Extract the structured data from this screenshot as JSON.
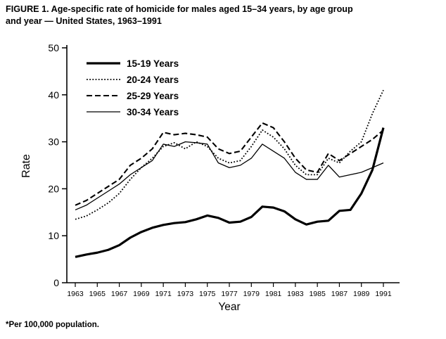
{
  "figure": {
    "title_lines": [
      "FIGURE 1. Age-specific rate of homicide for males aged 15–34 years, by age group",
      "and year — United States, 1963–1991"
    ],
    "footnote": "*Per 100,000 population."
  },
  "chart_data": {
    "type": "line",
    "title": "Age-specific rate of homicide for males aged 15–34 years, by age group and year — United States, 1963–1991",
    "xlabel": "Year",
    "ylabel": "Rate",
    "ylim": [
      0,
      50
    ],
    "yticks": [
      0,
      10,
      20,
      30,
      40,
      50
    ],
    "x": [
      1963,
      1964,
      1965,
      1966,
      1967,
      1968,
      1969,
      1970,
      1971,
      1972,
      1973,
      1974,
      1975,
      1976,
      1977,
      1978,
      1979,
      1980,
      1981,
      1982,
      1983,
      1984,
      1985,
      1986,
      1987,
      1988,
      1989,
      1990,
      1991
    ],
    "xtick_labels": [
      "1963",
      "1965",
      "1967",
      "1969",
      "1971",
      "1973",
      "1975",
      "1977",
      "1979",
      "1981",
      "1983",
      "1985",
      "1987",
      "1989",
      "1991"
    ],
    "grid": false,
    "legend_position": "top-left-inside",
    "line_color": "#000000",
    "series": [
      {
        "name": "15-19 Years",
        "style": "thick-solid",
        "values": [
          5.5,
          6.0,
          6.4,
          7.0,
          8.0,
          9.6,
          10.8,
          11.7,
          12.3,
          12.7,
          12.9,
          13.5,
          14.3,
          13.8,
          12.8,
          13.0,
          14.0,
          16.2,
          16.0,
          15.2,
          13.5,
          12.4,
          13.0,
          13.2,
          15.3,
          15.5,
          19.0,
          24.0,
          33.0
        ]
      },
      {
        "name": "20-24 Years",
        "style": "dotted",
        "values": [
          13.5,
          14.2,
          15.5,
          17.0,
          19.0,
          22.0,
          24.5,
          26.5,
          29.0,
          29.8,
          28.5,
          30.0,
          29.0,
          26.5,
          25.5,
          26.0,
          29.0,
          32.5,
          31.0,
          28.5,
          25.0,
          23.0,
          23.0,
          26.5,
          25.5,
          28.0,
          30.0,
          36.0,
          41.0
        ]
      },
      {
        "name": "25-29 Years",
        "style": "dashed",
        "values": [
          16.5,
          17.5,
          19.0,
          20.5,
          22.0,
          25.0,
          26.5,
          28.5,
          32.0,
          31.5,
          31.8,
          31.5,
          31.0,
          28.5,
          27.5,
          28.0,
          31.0,
          34.0,
          33.0,
          30.0,
          26.5,
          24.0,
          23.5,
          27.5,
          26.0,
          27.5,
          29.0,
          30.5,
          32.5
        ]
      },
      {
        "name": "30-34 Years",
        "style": "thin-solid",
        "values": [
          15.5,
          16.5,
          18.0,
          19.5,
          21.0,
          23.0,
          24.5,
          26.0,
          29.5,
          29.0,
          30.0,
          29.8,
          29.5,
          25.5,
          24.5,
          25.0,
          26.5,
          29.5,
          28.0,
          26.5,
          23.5,
          22.0,
          22.0,
          25.0,
          22.5,
          23.0,
          23.5,
          24.5,
          25.5
        ]
      }
    ]
  }
}
